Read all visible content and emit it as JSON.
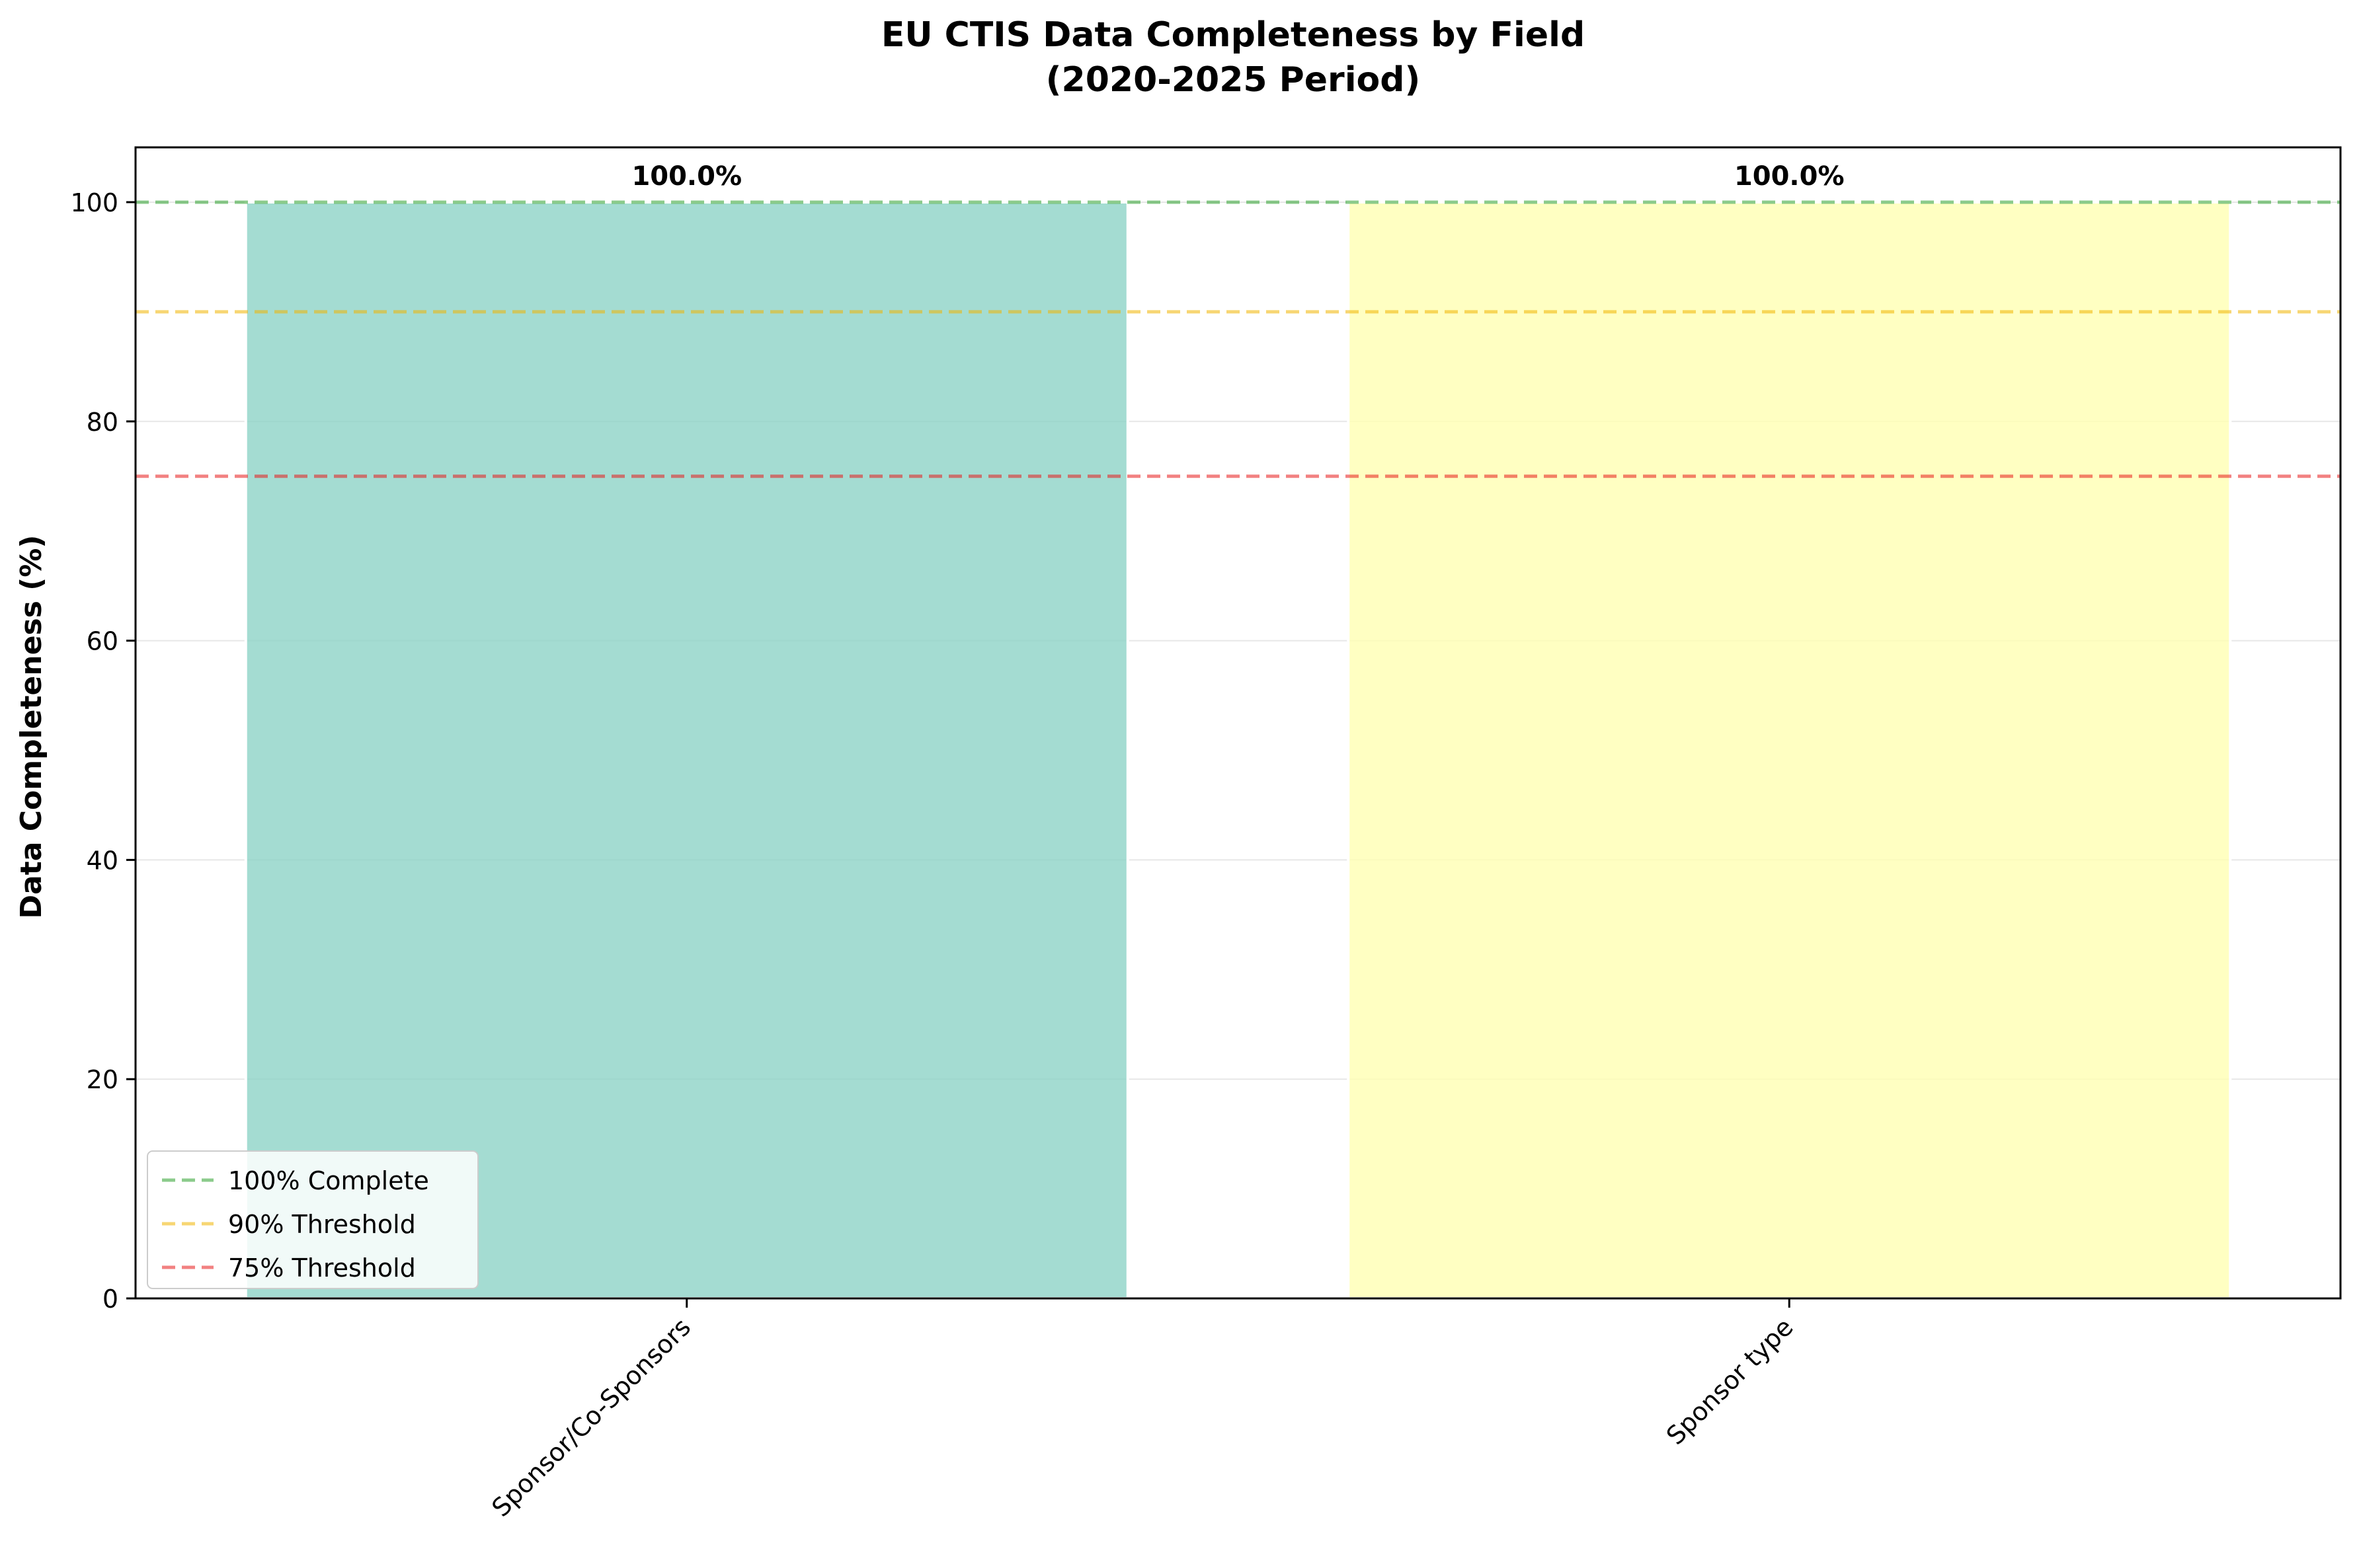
{
  "chart_data": {
    "type": "bar",
    "title_line1": "EU CTIS Data Completeness by Field",
    "title_line2": "(2020-2025 Period)",
    "xlabel": "",
    "ylabel": "Data Completeness (%)",
    "ylim": [
      0,
      105
    ],
    "yticks": [
      0,
      20,
      40,
      60,
      80,
      100
    ],
    "grid": "y-axis",
    "categories": [
      "Sponsor/Co-Sponsors",
      "Sponsor type"
    ],
    "values": [
      100.0,
      100.0
    ],
    "value_labels": [
      "100.0%",
      "100.0%"
    ],
    "bar_colors": [
      "#8dd3c7",
      "#ffffb3"
    ],
    "reference_lines": [
      {
        "label": "100% Complete",
        "value": 100,
        "color": "#2ca02c"
      },
      {
        "label": "90% Threshold",
        "value": 90,
        "color": "#f0b400"
      },
      {
        "label": "75% Threshold",
        "value": 75,
        "color": "#e8191a"
      }
    ],
    "legend_position": "lower-left"
  }
}
